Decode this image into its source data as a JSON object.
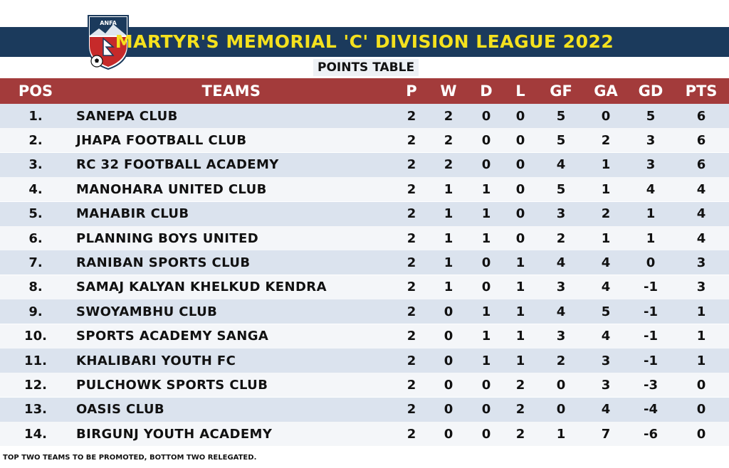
{
  "header": {
    "logo_text": "ANFA",
    "title": "MARTYR'S MEMORIAL 'C' DIVISION LEAGUE 2022",
    "subtitle": "POINTS TABLE"
  },
  "table": {
    "columns": [
      "POS",
      "TEAMS",
      "P",
      "W",
      "D",
      "L",
      "GF",
      "GA",
      "GD",
      "PTS"
    ],
    "rows": [
      [
        "1.",
        "SANEPA CLUB",
        "2",
        "2",
        "0",
        "0",
        "5",
        "0",
        "5",
        "6"
      ],
      [
        "2.",
        "JHAPA FOOTBALL CLUB",
        "2",
        "2",
        "0",
        "0",
        "5",
        "2",
        "3",
        "6"
      ],
      [
        "3.",
        "RC 32 FOOTBALL ACADEMY",
        "2",
        "2",
        "0",
        "0",
        "4",
        "1",
        "3",
        "6"
      ],
      [
        "4.",
        "MANOHARA UNITED CLUB",
        "2",
        "1",
        "1",
        "0",
        "5",
        "1",
        "4",
        "4"
      ],
      [
        "5.",
        "MAHABIR CLUB",
        "2",
        "1",
        "1",
        "0",
        "3",
        "2",
        "1",
        "4"
      ],
      [
        "6.",
        "PLANNING BOYS UNITED",
        "2",
        "1",
        "1",
        "0",
        "2",
        "1",
        "1",
        "4"
      ],
      [
        "7.",
        "RANIBAN SPORTS CLUB",
        "2",
        "1",
        "0",
        "1",
        "4",
        "4",
        "0",
        "3"
      ],
      [
        "8.",
        "SAMAJ KALYAN KHELKUD KENDRA",
        "2",
        "1",
        "0",
        "1",
        "3",
        "4",
        "-1",
        "3"
      ],
      [
        "9.",
        "SWOYAMBHU CLUB",
        "2",
        "0",
        "1",
        "1",
        "4",
        "5",
        "-1",
        "1"
      ],
      [
        "10.",
        "SPORTS ACADEMY SANGA",
        "2",
        "0",
        "1",
        "1",
        "3",
        "4",
        "-1",
        "1"
      ],
      [
        "11.",
        "KHALIBARI YOUTH FC",
        "2",
        "0",
        "1",
        "1",
        "2",
        "3",
        "-1",
        "1"
      ],
      [
        "12.",
        "PULCHOWK SPORTS CLUB",
        "2",
        "0",
        "0",
        "2",
        "0",
        "3",
        "-3",
        "0"
      ],
      [
        "13.",
        "OASIS CLUB",
        "2",
        "0",
        "0",
        "2",
        "0",
        "4",
        "-4",
        "0"
      ],
      [
        "14.",
        "BIRGUNJ YOUTH ACADEMY",
        "2",
        "0",
        "0",
        "2",
        "1",
        "7",
        "-6",
        "0"
      ]
    ]
  },
  "footnote": "TOP TWO TEAMS TO BE PROMOTED, BOTTOM TWO RELEGATED.",
  "colors": {
    "banner": "#1b3a5c",
    "title": "#f5e11e",
    "header_row": "#a33b3b",
    "row_odd": "#dbe3ee",
    "row_even": "#f4f6f9"
  }
}
